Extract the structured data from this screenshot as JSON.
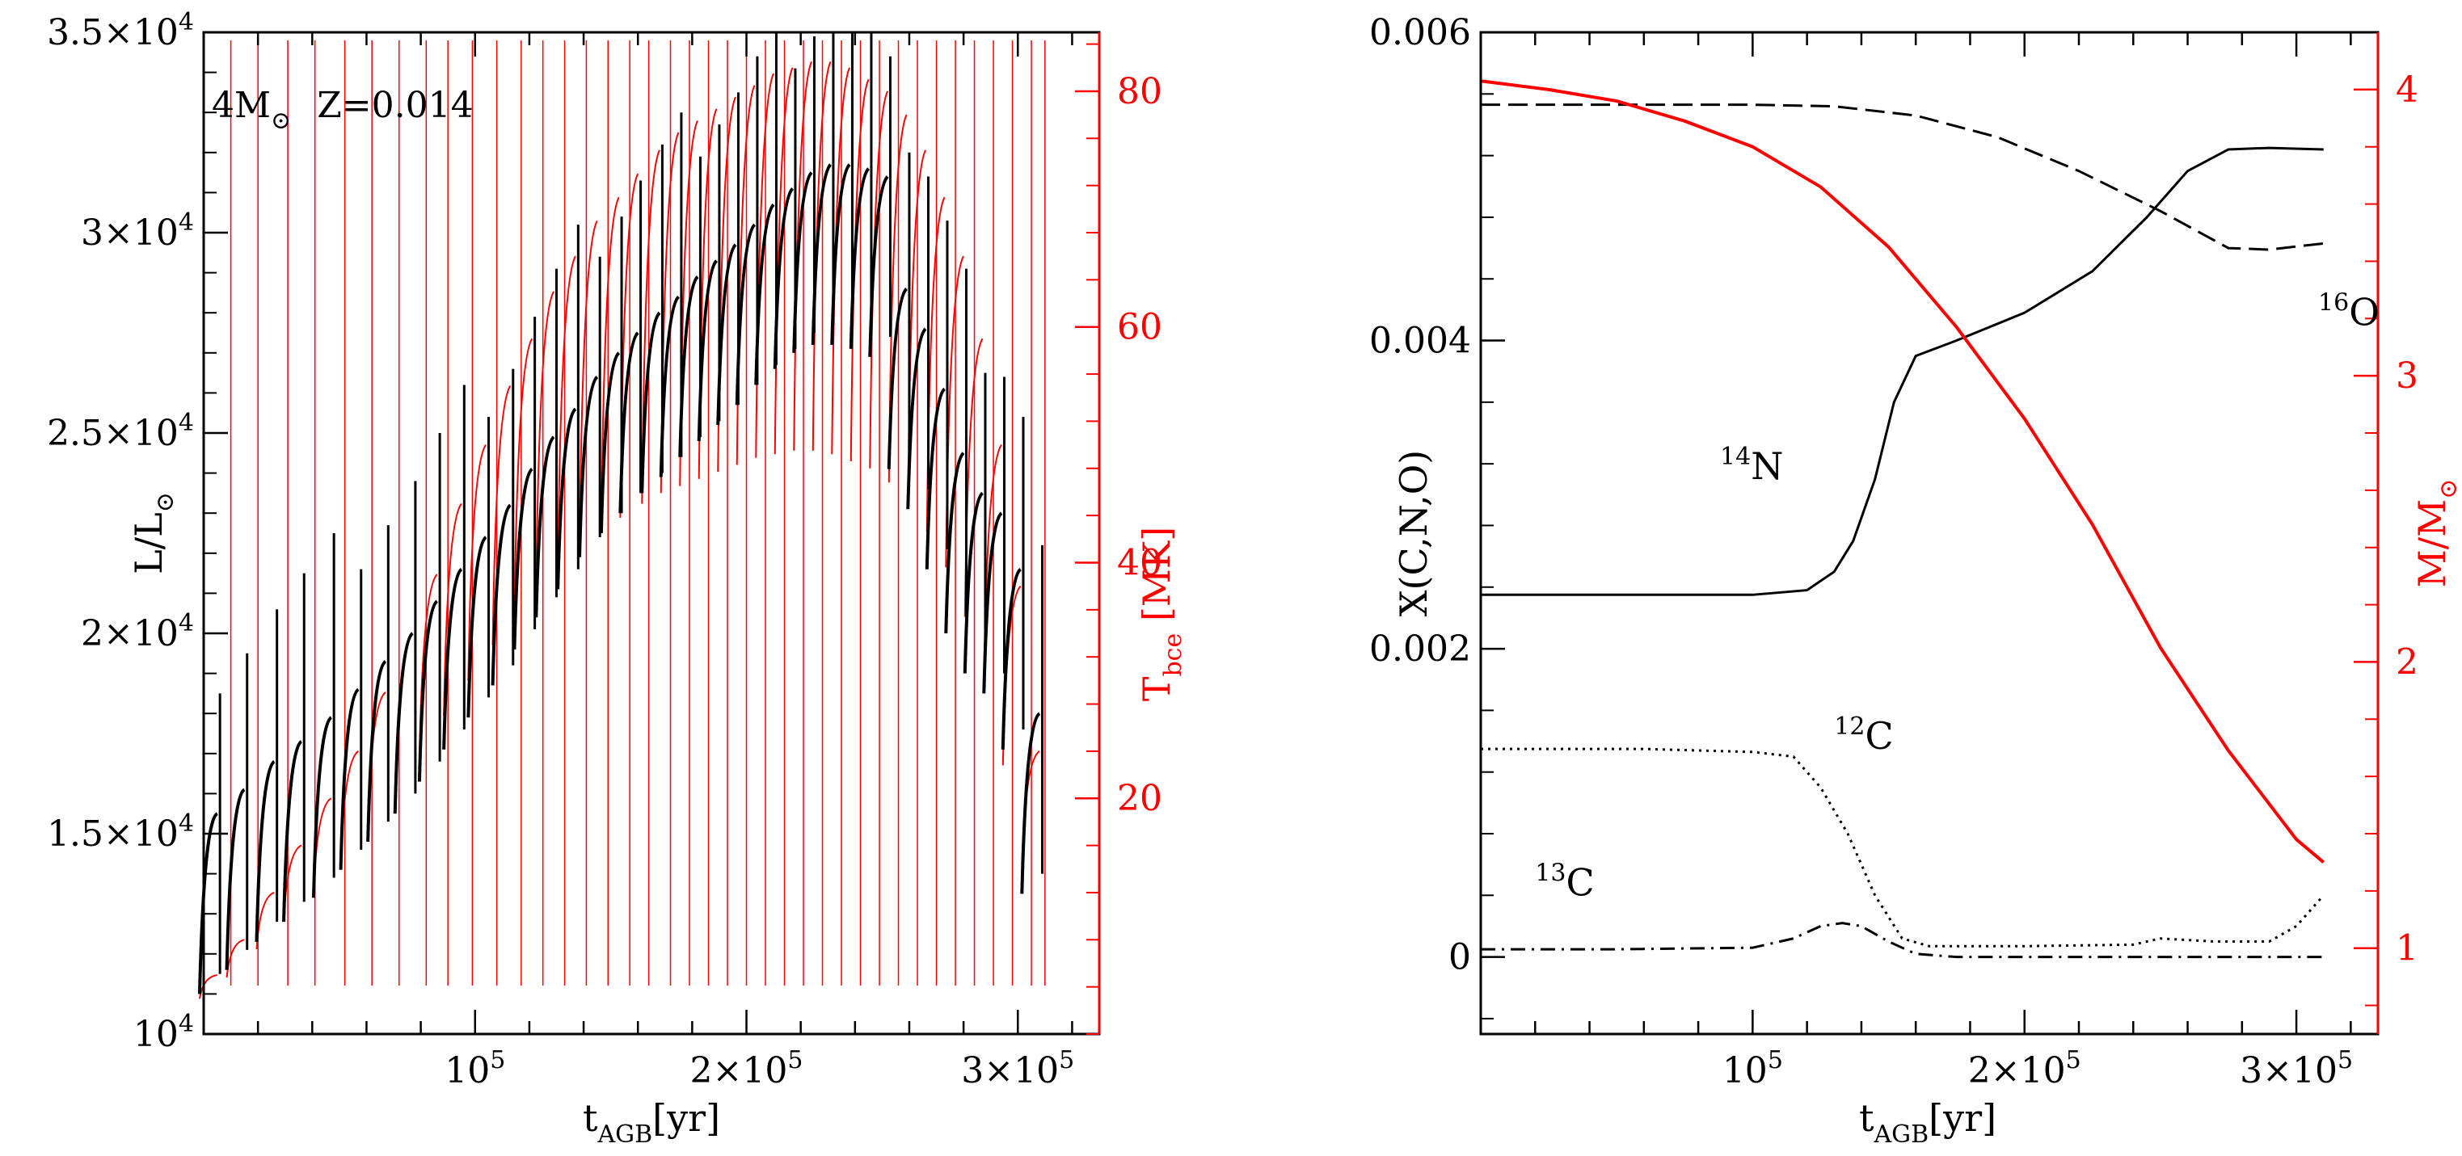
{
  "colors": {
    "black": "#000000",
    "red": "#ff0000",
    "background": "#ffffff"
  },
  "chart_data": [
    {
      "type": "line",
      "panel": "left",
      "annotation_mass": "4M",
      "annotation_mass_sub": "⊙",
      "annotation_metallicity": "Z=0.014",
      "xlabel": {
        "main": "t",
        "sub": "AGB",
        "tail": "[yr]"
      },
      "ylabel_left": {
        "main": "L/L",
        "sub": "⊙"
      },
      "ylabel_right": {
        "main": "T",
        "sub": "bce",
        "tail": " [MK]"
      },
      "xlim": [
        0,
        330000
      ],
      "ylim_left": [
        10000,
        35000
      ],
      "ylim_right": [
        0,
        85
      ],
      "x_ticks": [
        {
          "value": 100000,
          "mantissa": "",
          "base": "10",
          "exp": "5"
        },
        {
          "value": 200000,
          "mantissa": "2×",
          "base": "10",
          "exp": "5"
        },
        {
          "value": 300000,
          "mantissa": "3×",
          "base": "10",
          "exp": "5"
        }
      ],
      "y_ticks_left": [
        {
          "value": 10000,
          "mantissa": "",
          "base": "10",
          "exp": "4"
        },
        {
          "value": 15000,
          "mantissa": "1.5×",
          "base": "10",
          "exp": "4"
        },
        {
          "value": 20000,
          "mantissa": "2×",
          "base": "10",
          "exp": "4"
        },
        {
          "value": 25000,
          "mantissa": "2.5×",
          "base": "10",
          "exp": "4"
        },
        {
          "value": 30000,
          "mantissa": "3×",
          "base": "10",
          "exp": "4"
        },
        {
          "value": 35000,
          "mantissa": "3.5×",
          "base": "10",
          "exp": "4"
        }
      ],
      "y_ticks_right": [
        {
          "value": 20,
          "label": "20"
        },
        {
          "value": 40,
          "label": "40"
        },
        {
          "value": 60,
          "label": "60"
        },
        {
          "value": 80,
          "label": "80"
        }
      ],
      "series": [
        {
          "name": "Luminosity",
          "axis": "left",
          "color": "#000000",
          "interpulse_peaks": [
            [
              5000,
              15500
            ],
            [
              15000,
              16100
            ],
            [
              26000,
              16800
            ],
            [
              36000,
              17300
            ],
            [
              47000,
              17900
            ],
            [
              57000,
              18600
            ],
            [
              67000,
              19300
            ],
            [
              77000,
              20000
            ],
            [
              86000,
              20800
            ],
            [
              95000,
              21600
            ],
            [
              104000,
              22400
            ],
            [
              113000,
              23200
            ],
            [
              121000,
              24100
            ],
            [
              129000,
              24900
            ],
            [
              137000,
              25600
            ],
            [
              145000,
              26400
            ],
            [
              153000,
              27000
            ],
            [
              160000,
              27500
            ],
            [
              168000,
              28000
            ],
            [
              175000,
              28400
            ],
            [
              182000,
              28900
            ],
            [
              189000,
              29300
            ],
            [
              196000,
              29700
            ],
            [
              203000,
              30200
            ],
            [
              210000,
              30700
            ],
            [
              217000,
              31100
            ],
            [
              224000,
              31500
            ],
            [
              231000,
              31700
            ],
            [
              238000,
              31700
            ],
            [
              245000,
              31600
            ],
            [
              252000,
              31400
            ],
            [
              259000,
              28600
            ],
            [
              266000,
              27600
            ],
            [
              273000,
              26100
            ],
            [
              280000,
              24500
            ],
            [
              287000,
              23500
            ],
            [
              294000,
              23000
            ],
            [
              301000,
              21600
            ],
            [
              308000,
              18000
            ]
          ]
        },
        {
          "name": "T_bce",
          "axis": "right",
          "color": "#ff0000",
          "interpulse_peaks": [
            [
              5000,
              5
            ],
            [
              15000,
              8
            ],
            [
              26000,
              12
            ],
            [
              36000,
              16
            ],
            [
              47000,
              20
            ],
            [
              57000,
              24
            ],
            [
              67000,
              29
            ],
            [
              77000,
              34
            ],
            [
              86000,
              39
            ],
            [
              95000,
              45
            ],
            [
              104000,
              50
            ],
            [
              113000,
              55
            ],
            [
              121000,
              59
            ],
            [
              129000,
              63
            ],
            [
              137000,
              66
            ],
            [
              145000,
              69
            ],
            [
              153000,
              71
            ],
            [
              160000,
              73
            ],
            [
              168000,
              75
            ],
            [
              175000,
              76.5
            ],
            [
              182000,
              77.5
            ],
            [
              189000,
              78.5
            ],
            [
              196000,
              79.5
            ],
            [
              203000,
              80.5
            ],
            [
              210000,
              81.5
            ],
            [
              217000,
              82
            ],
            [
              224000,
              82.5
            ],
            [
              231000,
              82.5
            ],
            [
              238000,
              82
            ],
            [
              245000,
              81
            ],
            [
              252000,
              80
            ],
            [
              259000,
              78
            ],
            [
              266000,
              75
            ],
            [
              273000,
              71
            ],
            [
              280000,
              66
            ],
            [
              287000,
              59
            ],
            [
              294000,
              50
            ],
            [
              301000,
              38
            ],
            [
              308000,
              24
            ]
          ],
          "thermal_pulse_spikes": [
            10000,
            20000,
            31000,
            41000,
            52000,
            62000,
            72000,
            82000,
            90000,
            99000,
            108000,
            117000,
            125000,
            133000,
            141000,
            149000,
            157000,
            164000,
            172000,
            179000,
            186000,
            193000,
            200000,
            207000,
            214000,
            221000,
            228000,
            235000,
            242000,
            249000,
            256000,
            263000,
            270000,
            277000,
            284000,
            291000,
            298000,
            305000,
            310000
          ]
        }
      ]
    },
    {
      "type": "line",
      "panel": "right",
      "xlabel": {
        "main": "t",
        "sub": "AGB",
        "tail": "[yr]"
      },
      "ylabel_left": "X(C,N,O)",
      "ylabel_right": {
        "main": "M/M",
        "sub": "⊙"
      },
      "xlim": [
        0,
        330000
      ],
      "ylim_left": [
        -0.0005,
        0.006
      ],
      "ylim_right": [
        0.7,
        4.2
      ],
      "x_ticks": [
        {
          "value": 100000,
          "mantissa": "",
          "base": "10",
          "exp": "5"
        },
        {
          "value": 200000,
          "mantissa": "2×",
          "base": "10",
          "exp": "5"
        },
        {
          "value": 300000,
          "mantissa": "3×",
          "base": "10",
          "exp": "5"
        }
      ],
      "y_ticks_left": [
        {
          "value": 0,
          "label": "0"
        },
        {
          "value": 0.002,
          "label": "0.002"
        },
        {
          "value": 0.004,
          "label": "0.004"
        },
        {
          "value": 0.006,
          "label": "0.006"
        }
      ],
      "y_ticks_right": [
        {
          "value": 1,
          "label": "1"
        },
        {
          "value": 2,
          "label": "2"
        },
        {
          "value": 3,
          "label": "3"
        },
        {
          "value": 4,
          "label": "4"
        }
      ],
      "series": [
        {
          "name": "16O",
          "iso": "16",
          "element": "O",
          "axis": "left",
          "color": "#000000",
          "dash": "long",
          "label_at": [
            308000,
            0.0041
          ],
          "x": [
            0,
            50000,
            100000,
            130000,
            160000,
            190000,
            220000,
            250000,
            275000,
            290000,
            310000
          ],
          "y": [
            0.00553,
            0.00553,
            0.00553,
            0.00552,
            0.00546,
            0.00532,
            0.0051,
            0.00484,
            0.0046,
            0.00459,
            0.00463
          ]
        },
        {
          "name": "14N",
          "iso": "14",
          "element": "N",
          "axis": "left",
          "color": "#000000",
          "dash": "solid",
          "label_at": [
            88000,
            0.0031
          ],
          "x": [
            0,
            60000,
            100000,
            120000,
            130000,
            137000,
            145000,
            152000,
            160000,
            175000,
            200000,
            225000,
            245000,
            260000,
            275000,
            290000,
            310000
          ],
          "y": [
            0.00235,
            0.00235,
            0.00235,
            0.00238,
            0.0025,
            0.0027,
            0.0031,
            0.0036,
            0.0039,
            0.004,
            0.00418,
            0.00445,
            0.0048,
            0.0051,
            0.00524,
            0.00525,
            0.00524
          ]
        },
        {
          "name": "12C",
          "iso": "12",
          "element": "C",
          "axis": "left",
          "color": "#000000",
          "dash": "dotted",
          "label_at": [
            130000,
            0.00135
          ],
          "x": [
            0,
            60000,
            100000,
            115000,
            125000,
            135000,
            145000,
            155000,
            165000,
            200000,
            240000,
            250000,
            270000,
            290000,
            300000,
            310000
          ],
          "y": [
            0.00135,
            0.00135,
            0.00133,
            0.0013,
            0.0011,
            0.0008,
            0.0004,
            0.00012,
            7e-05,
            7e-05,
            8e-05,
            0.00012,
            0.0001,
            0.0001,
            0.0002,
            0.0004
          ]
        },
        {
          "name": "13C",
          "iso": "13",
          "element": "C",
          "axis": "left",
          "color": "#000000",
          "dash": "dashdot",
          "label_at": [
            20000,
            0.0004
          ],
          "x": [
            0,
            50000,
            100000,
            115000,
            125000,
            133000,
            140000,
            150000,
            160000,
            175000,
            200000,
            250000,
            310000
          ],
          "y": [
            5e-05,
            5e-05,
            6e-05,
            0.00012,
            0.0002,
            0.00022,
            0.0002,
            0.0001,
            2e-05,
            0.0,
            0.0,
            0.0,
            0.0
          ]
        },
        {
          "name": "Mass",
          "axis": "right",
          "color": "#ff0000",
          "dash": "solid",
          "x": [
            0,
            25000,
            50000,
            75000,
            100000,
            125000,
            150000,
            175000,
            200000,
            225000,
            250000,
            275000,
            300000,
            310000
          ],
          "y": [
            4.03,
            4.0,
            3.96,
            3.89,
            3.8,
            3.66,
            3.45,
            3.17,
            2.85,
            2.48,
            2.05,
            1.69,
            1.38,
            1.3
          ]
        }
      ]
    }
  ]
}
